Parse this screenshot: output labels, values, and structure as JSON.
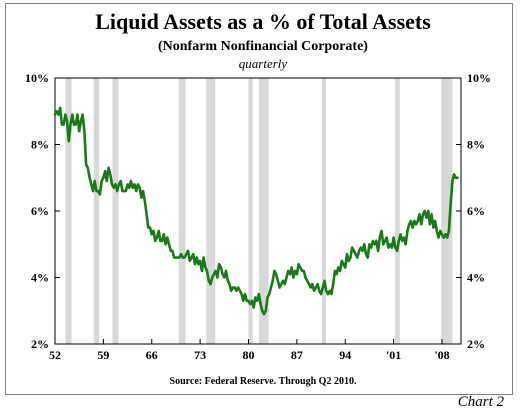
{
  "chart_data": {
    "type": "line",
    "title": "Liquid Assets as a % of Total Assets",
    "subtitle": "(Nonfarm Nonfinancial Corporate)",
    "frequency_label": "quarterly",
    "source": "Source:  Federal Reserve. Through Q2 2010.",
    "badge": "Chart 2",
    "x_range": [
      1952.0,
      2010.75
    ],
    "ylim": [
      2,
      10
    ],
    "x_ticks": [
      {
        "label": "52",
        "year": 1952
      },
      {
        "label": "59",
        "year": 1959
      },
      {
        "label": "66",
        "year": 1966
      },
      {
        "label": "73",
        "year": 1973
      },
      {
        "label": "80",
        "year": 1980
      },
      {
        "label": "87",
        "year": 1987
      },
      {
        "label": "94",
        "year": 1994
      },
      {
        "label": "'01",
        "year": 2001
      },
      {
        "label": "'08",
        "year": 2008
      }
    ],
    "y_ticks": [
      {
        "label": "2%",
        "value": 2
      },
      {
        "label": "4%",
        "value": 4
      },
      {
        "label": "6%",
        "value": 6
      },
      {
        "label": "8%",
        "value": 8
      },
      {
        "label": "10%",
        "value": 10
      }
    ],
    "recessions": [
      [
        1953.5,
        1954.4
      ],
      [
        1957.6,
        1958.4
      ],
      [
        1960.3,
        1961.2
      ],
      [
        1969.9,
        1970.9
      ],
      [
        1973.9,
        1975.2
      ],
      [
        1980.0,
        1980.6
      ],
      [
        1981.5,
        1982.9
      ],
      [
        1990.6,
        1991.2
      ],
      [
        2001.2,
        2001.9
      ],
      [
        2007.9,
        2009.5
      ]
    ],
    "recession_color": "#d8d8d8",
    "line_color": "#1a7a1a",
    "series": [
      {
        "x": [
          1952.0,
          1952.25,
          1952.5,
          1952.75,
          1953.0,
          1953.25,
          1953.5,
          1953.75,
          1954.0,
          1954.25,
          1954.5,
          1954.75,
          1955.0,
          1955.25,
          1955.5,
          1955.75,
          1956.0,
          1956.25,
          1956.5,
          1956.75,
          1957.0,
          1957.25,
          1957.5,
          1957.75,
          1958.0,
          1958.25,
          1958.5,
          1958.75,
          1959.0,
          1959.25,
          1959.5,
          1959.75,
          1960.0,
          1960.25,
          1960.5,
          1960.75,
          1961.0,
          1961.25,
          1961.5,
          1961.75,
          1962.0,
          1962.25,
          1962.5,
          1962.75,
          1963.0,
          1963.25,
          1963.5,
          1963.75,
          1964.0,
          1964.25,
          1964.5,
          1964.75,
          1965.0,
          1965.25,
          1965.5,
          1965.75,
          1966.0,
          1966.25,
          1966.5,
          1966.75,
          1967.0,
          1967.25,
          1967.5,
          1967.75,
          1968.0,
          1968.25,
          1968.5,
          1968.75,
          1969.0,
          1969.25,
          1969.5,
          1969.75,
          1970.0,
          1970.25,
          1970.5,
          1970.75,
          1971.0,
          1971.25,
          1971.5,
          1971.75,
          1972.0,
          1972.25,
          1972.5,
          1972.75,
          1973.0,
          1973.25,
          1973.5,
          1973.75,
          1974.0,
          1974.25,
          1974.5,
          1974.75,
          1975.0,
          1975.25,
          1975.5,
          1975.75,
          1976.0,
          1976.25,
          1976.5,
          1976.75,
          1977.0,
          1977.25,
          1977.5,
          1977.75,
          1978.0,
          1978.25,
          1978.5,
          1978.75,
          1979.0,
          1979.25,
          1979.5,
          1979.75,
          1980.0,
          1980.25,
          1980.5,
          1980.75,
          1981.0,
          1981.25,
          1981.5,
          1981.75,
          1982.0,
          1982.25,
          1982.5,
          1982.75,
          1983.0,
          1983.25,
          1983.5,
          1983.75,
          1984.0,
          1984.25,
          1984.5,
          1984.75,
          1985.0,
          1985.25,
          1985.5,
          1985.75,
          1986.0,
          1986.25,
          1986.5,
          1986.75,
          1987.0,
          1987.25,
          1987.5,
          1987.75,
          1988.0,
          1988.25,
          1988.5,
          1988.75,
          1989.0,
          1989.25,
          1989.5,
          1989.75,
          1990.0,
          1990.25,
          1990.5,
          1990.75,
          1991.0,
          1991.25,
          1991.5,
          1991.75,
          1992.0,
          1992.25,
          1992.5,
          1992.75,
          1993.0,
          1993.25,
          1993.5,
          1993.75,
          1994.0,
          1994.25,
          1994.5,
          1994.75,
          1995.0,
          1995.25,
          1995.5,
          1995.75,
          1996.0,
          1996.25,
          1996.5,
          1996.75,
          1997.0,
          1997.25,
          1997.5,
          1997.75,
          1998.0,
          1998.25,
          1998.5,
          1998.75,
          1999.0,
          1999.25,
          1999.5,
          1999.75,
          2000.0,
          2000.25,
          2000.5,
          2000.75,
          2001.0,
          2001.25,
          2001.5,
          2001.75,
          2002.0,
          2002.25,
          2002.5,
          2002.75,
          2003.0,
          2003.25,
          2003.5,
          2003.75,
          2004.0,
          2004.25,
          2004.5,
          2004.75,
          2005.0,
          2005.25,
          2005.5,
          2005.75,
          2006.0,
          2006.25,
          2006.5,
          2006.75,
          2007.0,
          2007.25,
          2007.5,
          2007.75,
          2008.0,
          2008.25,
          2008.5,
          2008.75,
          2009.0,
          2009.25,
          2009.5,
          2009.75,
          2010.0,
          2010.25
        ],
        "values": [
          8.9,
          9.0,
          8.9,
          9.1,
          8.6,
          8.6,
          8.9,
          8.7,
          8.1,
          8.6,
          8.9,
          8.6,
          8.6,
          8.9,
          8.4,
          8.7,
          8.9,
          8.4,
          7.4,
          7.3,
          7.0,
          6.8,
          6.6,
          6.9,
          6.6,
          6.6,
          6.5,
          6.9,
          7.0,
          7.2,
          6.9,
          7.3,
          7.1,
          6.8,
          6.7,
          6.8,
          6.6,
          6.8,
          6.9,
          6.6,
          6.6,
          6.6,
          6.8,
          6.7,
          6.9,
          6.7,
          6.8,
          6.6,
          6.8,
          6.7,
          6.4,
          6.6,
          6.3,
          5.9,
          5.5,
          5.5,
          5.3,
          5.4,
          5.1,
          5.2,
          5.4,
          5.1,
          5.1,
          5.3,
          5.0,
          5.2,
          5.0,
          4.8,
          4.8,
          4.6,
          4.6,
          4.6,
          4.6,
          4.7,
          4.6,
          4.6,
          4.7,
          4.8,
          4.5,
          4.6,
          4.7,
          4.4,
          4.6,
          4.4,
          4.5,
          4.2,
          4.6,
          4.3,
          4.2,
          3.9,
          3.8,
          4.0,
          4.1,
          4.2,
          4.0,
          4.4,
          4.3,
          4.1,
          4.0,
          4.2,
          3.9,
          3.8,
          3.6,
          3.7,
          3.7,
          3.6,
          3.7,
          3.6,
          3.5,
          3.3,
          3.5,
          3.3,
          3.3,
          3.2,
          3.3,
          3.1,
          3.4,
          3.3,
          3.5,
          3.2,
          3.0,
          2.9,
          3.0,
          3.4,
          3.5,
          3.7,
          3.9,
          4.2,
          4.1,
          3.9,
          3.7,
          3.8,
          3.9,
          3.8,
          4.0,
          4.2,
          4.1,
          4.3,
          4.0,
          4.2,
          4.1,
          4.4,
          4.3,
          4.2,
          4.2,
          4.0,
          3.9,
          3.8,
          3.7,
          3.8,
          3.6,
          3.7,
          3.8,
          3.6,
          3.5,
          3.7,
          3.9,
          3.6,
          3.5,
          3.6,
          3.5,
          3.8,
          4.2,
          4.1,
          4.3,
          4.2,
          4.5,
          4.4,
          4.3,
          4.7,
          4.5,
          4.6,
          4.9,
          4.8,
          4.7,
          4.6,
          4.8,
          4.9,
          4.8,
          5.0,
          4.7,
          4.6,
          5.0,
          4.9,
          5.1,
          5.0,
          5.1,
          4.8,
          5.2,
          5.4,
          5.0,
          5.1,
          5.2,
          4.9,
          5.0,
          4.9,
          5.2,
          4.9,
          4.8,
          5.1,
          5.3,
          5.1,
          5.2,
          5.0,
          5.4,
          5.6,
          5.7,
          5.5,
          5.7,
          5.6,
          5.7,
          5.9,
          5.6,
          5.9,
          6.0,
          5.8,
          6.0,
          5.6,
          5.9,
          5.5,
          5.7,
          5.4,
          5.2,
          5.4,
          5.3,
          5.2,
          5.3,
          5.2,
          5.4,
          6.2,
          6.9,
          7.1,
          7.0,
          7.0
        ]
      }
    ]
  }
}
